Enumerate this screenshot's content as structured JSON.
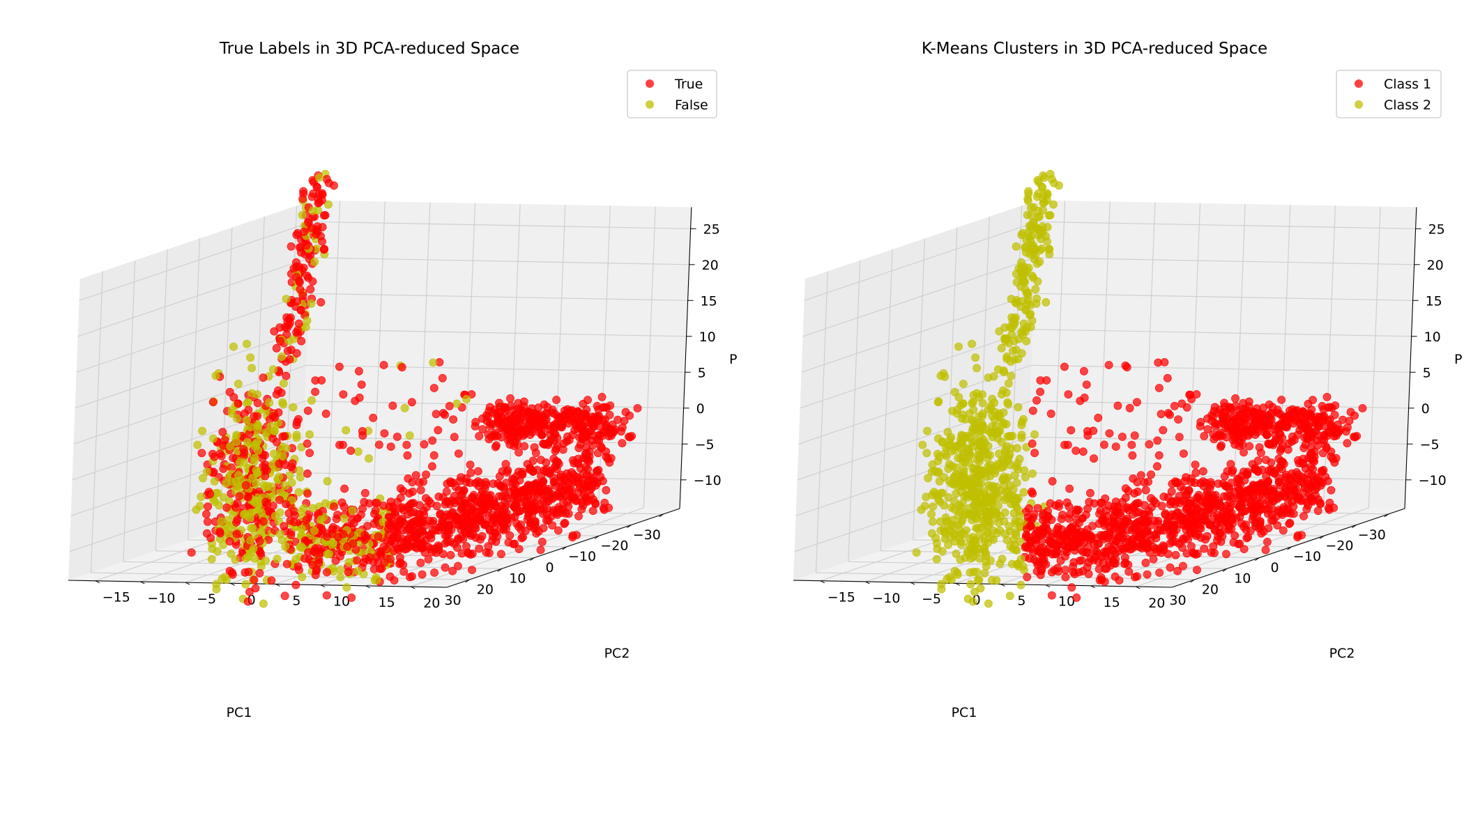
{
  "chart_data": [
    {
      "type": "scatter",
      "projection": "3d",
      "title": "True Labels in 3D PCA-reduced Space",
      "xlabel": "PC1",
      "ylabel": "PC2",
      "zlabel": "P",
      "xlim": [
        -35,
        37
      ],
      "ylim": [
        -18,
        24
      ],
      "zlim": [
        -14,
        28
      ],
      "x_ticks": [
        "−30",
        "−20",
        "−10",
        "0",
        "10",
        "20",
        "30"
      ],
      "y_ticks": [
        "−15",
        "−10",
        "−5",
        "0",
        "5",
        "10",
        "15",
        "20"
      ],
      "z_ticks": [
        "−10",
        "−5",
        "0",
        "5",
        "10",
        "15",
        "20",
        "25"
      ],
      "grid": true,
      "legend_position": "top-right",
      "series": [
        {
          "name": "True",
          "color": "#ff0000"
        },
        {
          "name": "False",
          "color": "#bfbf00"
        }
      ]
    },
    {
      "type": "scatter",
      "projection": "3d",
      "title": "K-Means Clusters in 3D PCA-reduced Space",
      "xlabel": "PC1",
      "ylabel": "PC2",
      "zlabel": "P",
      "xlim": [
        -35,
        37
      ],
      "ylim": [
        -18,
        24
      ],
      "zlim": [
        -14,
        28
      ],
      "x_ticks": [
        "−30",
        "−20",
        "−10",
        "0",
        "10",
        "20",
        "30"
      ],
      "y_ticks": [
        "−15",
        "−10",
        "−5",
        "0",
        "5",
        "10",
        "15",
        "20"
      ],
      "z_ticks": [
        "−10",
        "−5",
        "0",
        "5",
        "10",
        "15",
        "20",
        "25"
      ],
      "grid": true,
      "legend_position": "top-right",
      "series": [
        {
          "name": "Class 1",
          "color": "#ff0000"
        },
        {
          "name": "Class 2",
          "color": "#bfbf00"
        }
      ]
    }
  ]
}
